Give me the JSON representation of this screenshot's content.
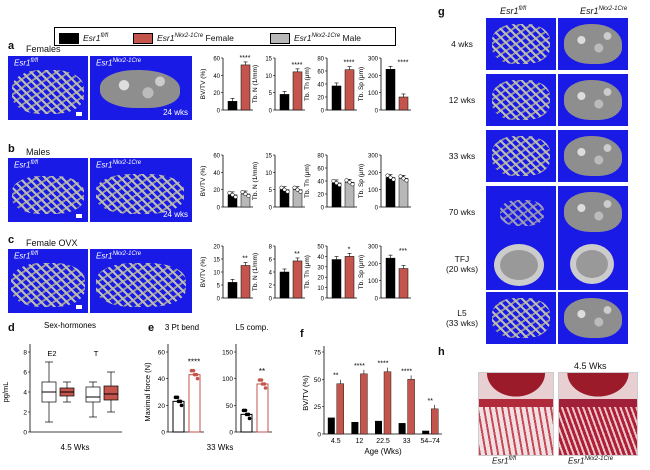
{
  "legend": {
    "items": [
      {
        "name_main": "Esr1",
        "name_sup": "fl/fl",
        "suffix": "",
        "color": "#000000"
      },
      {
        "name_main": "Esr1",
        "name_sup": "Nkx2-1Cre",
        "suffix": " Female",
        "color": "#c4554d"
      },
      {
        "name_main": "Esr1",
        "name_sup": "Nkx2-1Cre",
        "suffix": " Male",
        "color": "#b8b8b8"
      }
    ]
  },
  "panels": {
    "a": {
      "letter": "a",
      "title": "Females",
      "ctrl": "Esr1",
      "ctrl_sup": "fl/fl",
      "ko": "Esr1",
      "ko_sup": "Nkx2-1Cre",
      "age": "24 wks"
    },
    "b": {
      "letter": "b",
      "title": "Males",
      "ctrl": "Esr1",
      "ctrl_sup": "fl/fl",
      "ko": "Esr1",
      "ko_sup": "Nkx2-1Cre",
      "age": "24 wks"
    },
    "c": {
      "letter": "c",
      "title": "Female OVX",
      "ctrl": "Esr1",
      "ctrl_sup": "fl/fl",
      "ko": "Esr1",
      "ko_sup": "Nkx2-1Cre"
    },
    "d": {
      "letter": "d",
      "title": "Sex-hormones",
      "ylabel": "pg/mL",
      "groups": [
        "E2",
        "T"
      ],
      "xlabel": "4.5 Wks"
    },
    "e": {
      "letter": "e",
      "sub1": "3 Pt bend",
      "sub2": "L5 comp.",
      "ylabel": "Maximal force (N)",
      "xlabel": "33 Wks",
      "sig1": "****",
      "sig2": "**"
    },
    "f": {
      "letter": "f",
      "ylabel": "BV/TV (%)",
      "xlabel": "Age (Wks)",
      "ticks": [
        "4.5",
        "12",
        "22.5",
        "33",
        "54–74"
      ],
      "sigs": [
        "**",
        "****",
        "****",
        "****",
        "**"
      ]
    },
    "g": {
      "letter": "g",
      "ctrl": "Esr1",
      "ctrl_sup": "fl/fl",
      "ko": "Esr1",
      "ko_sup": "Nkx2-1Cre",
      "rows": [
        "4 wks",
        "12 wks",
        "33 wks",
        "70 wks",
        "TFJ",
        "(20 wks)",
        "L5",
        "(33 wks)"
      ]
    },
    "h": {
      "letter": "h",
      "age": "4.5 Wks",
      "ctrl": "Esr1",
      "ctrl_sup": "fl/fl",
      "ko": "Esr1",
      "ko_sup": "Nkx2-1Cre"
    }
  },
  "chart_data": [
    {
      "type": "bar",
      "panel": "a",
      "metrics": [
        {
          "ylabel": "BV/TV (%)",
          "yticks": [
            0,
            20,
            40,
            60
          ],
          "ylim": [
            0,
            60
          ],
          "values": [
            10,
            52
          ],
          "sig": "****"
        },
        {
          "ylabel": "Tb. N (1/mm)",
          "yticks": [
            0,
            5,
            10,
            15
          ],
          "ylim": [
            0,
            15
          ],
          "values": [
            4.5,
            11
          ],
          "sig": "****"
        },
        {
          "ylabel": "Tb. Th (μm)",
          "yticks": [
            0,
            20,
            40,
            60,
            80
          ],
          "ylim": [
            0,
            80
          ],
          "values": [
            37,
            62
          ],
          "sig": "****"
        },
        {
          "ylabel": "Tb. Sp (μm)",
          "yticks": [
            0,
            100,
            200,
            300
          ],
          "ylim": [
            0,
            300
          ],
          "values": [
            235,
            75
          ],
          "sig": "****"
        }
      ]
    },
    {
      "type": "bar",
      "panel": "b",
      "metrics": [
        {
          "ylabel": "BV/TV (%)",
          "yticks": [
            0,
            20,
            40,
            60
          ],
          "ylim": [
            0,
            60
          ],
          "values": [
            14,
            15
          ],
          "sig": ""
        },
        {
          "ylabel": "Tb. N (1/mm)",
          "yticks": [
            0,
            5,
            10,
            15
          ],
          "ylim": [
            0,
            15
          ],
          "values": [
            5,
            5
          ],
          "sig": ""
        },
        {
          "ylabel": "Tb. Th (μm)",
          "yticks": [
            0,
            20,
            40,
            60,
            80
          ],
          "ylim": [
            0,
            80
          ],
          "values": [
            37,
            38
          ],
          "sig": ""
        },
        {
          "ylabel": "Tb. Sp (μm)",
          "yticks": [
            0,
            100,
            200,
            300
          ],
          "ylim": [
            0,
            300
          ],
          "values": [
            170,
            165
          ],
          "sig": ""
        }
      ]
    },
    {
      "type": "bar",
      "panel": "c",
      "metrics": [
        {
          "ylabel": "BV/TV (%)",
          "yticks": [
            0,
            5,
            10,
            15,
            20
          ],
          "ylim": [
            0,
            20
          ],
          "values": [
            6,
            12.5
          ],
          "sig": "**"
        },
        {
          "ylabel": "Tb. N (1/mm)",
          "yticks": [
            0,
            2,
            4,
            6,
            8
          ],
          "ylim": [
            0,
            8
          ],
          "values": [
            4,
            5.7
          ],
          "sig": "**"
        },
        {
          "ylabel": "Tb. Th (μm)",
          "yticks": [
            0,
            10,
            20,
            30,
            40,
            50
          ],
          "ylim": [
            0,
            50
          ],
          "values": [
            37,
            40
          ],
          "sig": "*"
        },
        {
          "ylabel": "Tb. Sp (μm)",
          "yticks": [
            0,
            100,
            200,
            300
          ],
          "ylim": [
            0,
            300
          ],
          "values": [
            230,
            170
          ],
          "sig": "***"
        }
      ]
    },
    {
      "type": "box",
      "panel": "d",
      "yticks": [
        0,
        2,
        4,
        6,
        8
      ],
      "ylim": [
        0,
        8
      ],
      "boxes": [
        {
          "group": "E2",
          "min": 1,
          "q1": 3,
          "med": 4,
          "q3": 5,
          "max": 7
        },
        {
          "group": "E2",
          "min": 3,
          "q1": 3.6,
          "med": 4,
          "q3": 4.4,
          "max": 5
        },
        {
          "group": "T",
          "min": 1.5,
          "q1": 3,
          "med": 3.5,
          "q3": 4.5,
          "max": 5
        },
        {
          "group": "T",
          "min": 2,
          "q1": 3.2,
          "med": 3.8,
          "q3": 4.6,
          "max": 6
        }
      ]
    },
    {
      "type": "bar",
      "panel": "e",
      "groups": [
        {
          "yticks": [
            0,
            20,
            40,
            60
          ],
          "ylim": [
            0,
            60
          ],
          "values": [
            23,
            43
          ]
        },
        {
          "yticks": [
            0,
            50,
            100,
            150
          ],
          "ylim": [
            0,
            150
          ],
          "values": [
            33,
            90
          ]
        }
      ]
    },
    {
      "type": "bar",
      "panel": "f",
      "yticks": [
        0,
        25,
        50,
        75
      ],
      "ylim": [
        0,
        75
      ],
      "categories": [
        "4.5",
        "12",
        "22.5",
        "33",
        "54–74"
      ],
      "series": [
        {
          "values": [
            15,
            11,
            12,
            10,
            3
          ]
        },
        {
          "values": [
            46,
            55,
            57,
            50,
            23
          ]
        }
      ]
    }
  ]
}
